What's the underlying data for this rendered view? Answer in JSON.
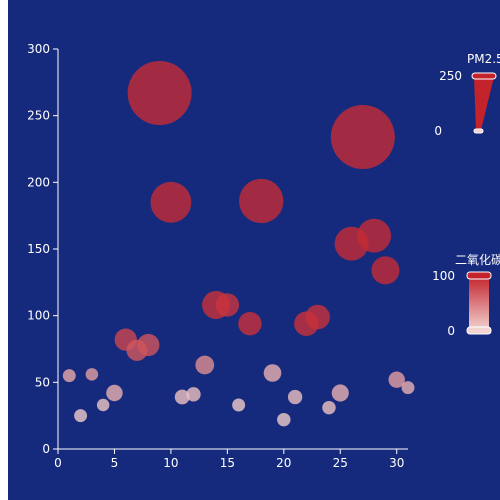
{
  "chart_data": {
    "type": "scatter",
    "xlim": [
      0,
      31
    ],
    "ylim": [
      0,
      300
    ],
    "x_ticks": [
      0,
      5,
      10,
      15,
      20,
      25,
      30
    ],
    "y_ticks": [
      0,
      50,
      100,
      150,
      200,
      250,
      300
    ],
    "grid": false,
    "size_dimension": "PM2.5",
    "color_dimension": "二氧化碳",
    "colors": {
      "background": "#162a7d",
      "high": "#c4232c",
      "low": "#f2d5d3",
      "axis": "#ffffff"
    },
    "points": [
      {
        "x": 1,
        "y": 55,
        "pm25": 30,
        "co2": 25
      },
      {
        "x": 2,
        "y": 25,
        "pm25": 30,
        "co2": 5
      },
      {
        "x": 3,
        "y": 56,
        "pm25": 28,
        "co2": 30
      },
      {
        "x": 4,
        "y": 33,
        "pm25": 28,
        "co2": 8
      },
      {
        "x": 5,
        "y": 42,
        "pm25": 45,
        "co2": 20
      },
      {
        "x": 6,
        "y": 82,
        "pm25": 70,
        "co2": 80
      },
      {
        "x": 7,
        "y": 74,
        "pm25": 65,
        "co2": 70
      },
      {
        "x": 8,
        "y": 78,
        "pm25": 70,
        "co2": 72
      },
      {
        "x": 9,
        "y": 267,
        "pm25": 250,
        "co2": 95
      },
      {
        "x": 10,
        "y": 185,
        "pm25": 150,
        "co2": 95
      },
      {
        "x": 11,
        "y": 39,
        "pm25": 38,
        "co2": 10
      },
      {
        "x": 12,
        "y": 41,
        "pm25": 36,
        "co2": 12
      },
      {
        "x": 13,
        "y": 63,
        "pm25": 55,
        "co2": 40
      },
      {
        "x": 14,
        "y": 108,
        "pm25": 95,
        "co2": 92
      },
      {
        "x": 15,
        "y": 108,
        "pm25": 75,
        "co2": 90
      },
      {
        "x": 16,
        "y": 33,
        "pm25": 30,
        "co2": 5
      },
      {
        "x": 17,
        "y": 94,
        "pm25": 75,
        "co2": 92
      },
      {
        "x": 18,
        "y": 186,
        "pm25": 165,
        "co2": 95
      },
      {
        "x": 19,
        "y": 57,
        "pm25": 50,
        "co2": 20
      },
      {
        "x": 20,
        "y": 22,
        "pm25": 32,
        "co2": 5
      },
      {
        "x": 21,
        "y": 39,
        "pm25": 36,
        "co2": 12
      },
      {
        "x": 22,
        "y": 94,
        "pm25": 80,
        "co2": 92
      },
      {
        "x": 23,
        "y": 99,
        "pm25": 80,
        "co2": 92
      },
      {
        "x": 24,
        "y": 31,
        "pm25": 32,
        "co2": 10
      },
      {
        "x": 25,
        "y": 42,
        "pm25": 48,
        "co2": 20
      },
      {
        "x": 26,
        "y": 154,
        "pm25": 120,
        "co2": 95
      },
      {
        "x": 27,
        "y": 234,
        "pm25": 250,
        "co2": 95
      },
      {
        "x": 28,
        "y": 160,
        "pm25": 120,
        "co2": 95
      },
      {
        "x": 29,
        "y": 134,
        "pm25": 95,
        "co2": 95
      },
      {
        "x": 30,
        "y": 52,
        "pm25": 45,
        "co2": 30
      },
      {
        "x": 31,
        "y": 46,
        "pm25": 30,
        "co2": 20
      }
    ]
  },
  "visual_map_size": {
    "title": "PM2.5",
    "max_label": "250",
    "min_label": "0",
    "max": 250,
    "min": 0
  },
  "visual_map_color": {
    "title": "二氧化碳",
    "max_label": "100",
    "min_label": "0",
    "max": 100,
    "min": 0
  }
}
